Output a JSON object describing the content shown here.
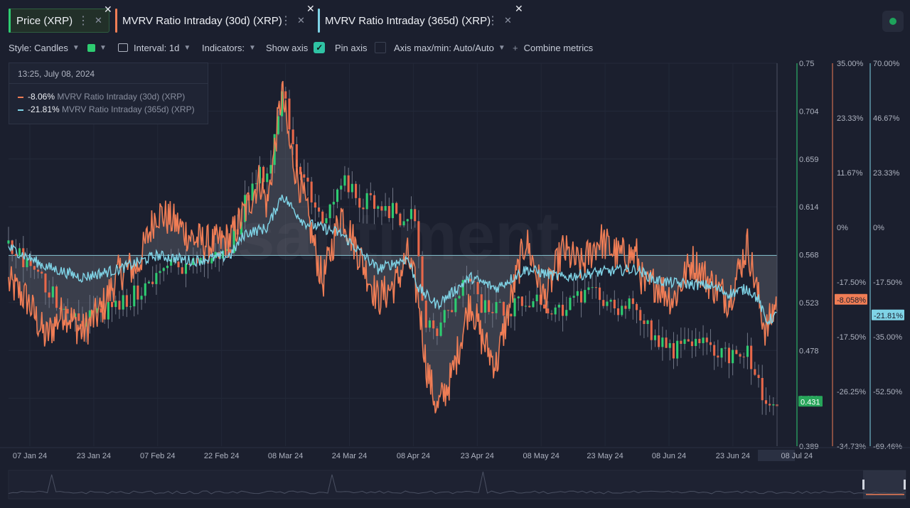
{
  "tabs": [
    {
      "label": "Price (XRP)",
      "color": "#2ecc71"
    },
    {
      "label": "MVRV Ratio Intraday (30d) (XRP)",
      "color": "#f07d55"
    },
    {
      "label": "MVRV Ratio Intraday (365d) (XRP)",
      "color": "#7fd3e6"
    }
  ],
  "toolbar": {
    "style": "Style: Candles",
    "interval": "Interval: 1d",
    "indicators": "Indicators:",
    "show_axis": "Show axis",
    "show_axis_checked": true,
    "pin_axis": "Pin axis",
    "axis_minmax": "Axis max/min: Auto/Auto",
    "combine": "Combine metrics"
  },
  "tooltip": {
    "date": "13:25, July 08, 2024",
    "rows": [
      {
        "value": "-8.06%",
        "name": "MVRV Ratio Intraday (30d) (XRP)",
        "color": "#f07d55"
      },
      {
        "value": "-21.81%",
        "name": "MVRV Ratio Intraday (365d) (XRP)",
        "color": "#7fd3e6"
      }
    ]
  },
  "watermark": "santiment",
  "chart_data": {
    "type": "line",
    "x_tick_labels": [
      "07 Jan 24",
      "23 Jan 24",
      "07 Feb 24",
      "22 Feb 24",
      "08 Mar 24",
      "24 Mar 24",
      "08 Apr 24",
      "23 Apr 24",
      "08 May 24",
      "23 May 24",
      "08 Jun 24",
      "23 Jun 24",
      "08 Jul 24"
    ],
    "x_range": [
      "2024-01-01",
      "2024-07-09"
    ],
    "axes": [
      {
        "series": "Price (XRP)",
        "ticks": [
          "0.75",
          "0.704",
          "0.659",
          "0.614",
          "0.568",
          "0.523",
          "0.478",
          "0.431",
          "0.389"
        ],
        "min": 0.389,
        "max": 0.75,
        "current_label": "0.431",
        "color": "#2ecc71"
      },
      {
        "series": "MVRV Ratio Intraday (30d) (XRP)",
        "ticks": [
          "35.00%",
          "23.33%",
          "11.67%",
          "0%",
          "-17.50%",
          "-17.50%",
          "-26.25%",
          "-34.73%"
        ],
        "min": -34.73,
        "max": 35.0,
        "current_label": "-8.058%",
        "color": "#f07d55"
      },
      {
        "series": "MVRV Ratio Intraday (365d) (XRP)",
        "ticks": [
          "70.00%",
          "46.67%",
          "23.33%",
          "0%",
          "-17.50%",
          "-35.00%",
          "-52.50%",
          "-69.46%"
        ],
        "min": -69.46,
        "max": 70.0,
        "current_label": "-21.81%",
        "color": "#7fd3e6"
      }
    ],
    "series": [
      {
        "name": "Price (XRP)",
        "style": "candles",
        "keypoints": [
          [
            0,
            0.58
          ],
          [
            5,
            0.56
          ],
          [
            10,
            0.54
          ],
          [
            15,
            0.52
          ],
          [
            20,
            0.51
          ],
          [
            25,
            0.515
          ],
          [
            30,
            0.52
          ],
          [
            35,
            0.535
          ],
          [
            40,
            0.55
          ],
          [
            45,
            0.56
          ],
          [
            50,
            0.56
          ],
          [
            55,
            0.565
          ],
          [
            60,
            0.575
          ],
          [
            64,
            0.62
          ],
          [
            68,
            0.65
          ],
          [
            70,
            0.64
          ],
          [
            74,
            0.73
          ],
          [
            78,
            0.66
          ],
          [
            82,
            0.62
          ],
          [
            86,
            0.6
          ],
          [
            90,
            0.64
          ],
          [
            95,
            0.62
          ],
          [
            100,
            0.62
          ],
          [
            104,
            0.61
          ],
          [
            108,
            0.6
          ],
          [
            110,
            0.61
          ],
          [
            111,
            0.56
          ],
          [
            113,
            0.5
          ],
          [
            116,
            0.5
          ],
          [
            120,
            0.52
          ],
          [
            125,
            0.55
          ],
          [
            128,
            0.52
          ],
          [
            132,
            0.52
          ],
          [
            136,
            0.52
          ],
          [
            140,
            0.53
          ],
          [
            145,
            0.52
          ],
          [
            150,
            0.52
          ],
          [
            155,
            0.53
          ],
          [
            160,
            0.53
          ],
          [
            165,
            0.52
          ],
          [
            170,
            0.52
          ],
          [
            172,
            0.51
          ],
          [
            175,
            0.49
          ],
          [
            180,
            0.48
          ],
          [
            185,
            0.49
          ],
          [
            190,
            0.48
          ],
          [
            195,
            0.475
          ],
          [
            200,
            0.478
          ],
          [
            203,
            0.45
          ],
          [
            205,
            0.42
          ],
          [
            208,
            0.431
          ]
        ]
      },
      {
        "name": "MVRV Ratio Intraday (30d) (XRP)",
        "keypoints": [
          [
            0,
            -5
          ],
          [
            5,
            -8
          ],
          [
            10,
            -15
          ],
          [
            15,
            -10
          ],
          [
            20,
            -14
          ],
          [
            25,
            -10
          ],
          [
            30,
            -3
          ],
          [
            35,
            -2
          ],
          [
            40,
            8
          ],
          [
            45,
            6
          ],
          [
            50,
            3
          ],
          [
            55,
            2
          ],
          [
            60,
            3
          ],
          [
            64,
            8
          ],
          [
            68,
            14
          ],
          [
            70,
            9
          ],
          [
            74,
            30
          ],
          [
            76,
            20
          ],
          [
            80,
            10
          ],
          [
            85,
            -5
          ],
          [
            90,
            8
          ],
          [
            95,
            0
          ],
          [
            100,
            -8
          ],
          [
            105,
            -5
          ],
          [
            108,
            0
          ],
          [
            111,
            -8
          ],
          [
            113,
            -20
          ],
          [
            116,
            -28
          ],
          [
            120,
            -22
          ],
          [
            125,
            -8
          ],
          [
            128,
            -15
          ],
          [
            132,
            -20
          ],
          [
            136,
            -8
          ],
          [
            140,
            3
          ],
          [
            145,
            -8
          ],
          [
            150,
            1
          ],
          [
            155,
            -2
          ],
          [
            160,
            3
          ],
          [
            165,
            0
          ],
          [
            170,
            0
          ],
          [
            172,
            -6
          ],
          [
            175,
            -5
          ],
          [
            180,
            -8
          ],
          [
            185,
            -1
          ],
          [
            190,
            -5
          ],
          [
            195,
            -8
          ],
          [
            200,
            2
          ],
          [
            203,
            -8
          ],
          [
            205,
            -14
          ],
          [
            208,
            -8.06
          ]
        ]
      },
      {
        "name": "MVRV Ratio Intraday (365d) (XRP)",
        "keypoints": [
          [
            0,
            3
          ],
          [
            10,
            -4
          ],
          [
            20,
            -8
          ],
          [
            30,
            -5
          ],
          [
            40,
            0
          ],
          [
            50,
            -2
          ],
          [
            60,
            0
          ],
          [
            64,
            8
          ],
          [
            70,
            10
          ],
          [
            74,
            22
          ],
          [
            80,
            12
          ],
          [
            90,
            8
          ],
          [
            100,
            -5
          ],
          [
            108,
            -1
          ],
          [
            111,
            -12
          ],
          [
            116,
            -18
          ],
          [
            125,
            -8
          ],
          [
            132,
            -12
          ],
          [
            140,
            -5
          ],
          [
            150,
            -8
          ],
          [
            160,
            -6
          ],
          [
            170,
            -5
          ],
          [
            175,
            -9
          ],
          [
            180,
            -10
          ],
          [
            190,
            -11
          ],
          [
            195,
            -14
          ],
          [
            200,
            -12
          ],
          [
            203,
            -16
          ],
          [
            205,
            -24
          ],
          [
            208,
            -21.81
          ]
        ]
      }
    ]
  }
}
